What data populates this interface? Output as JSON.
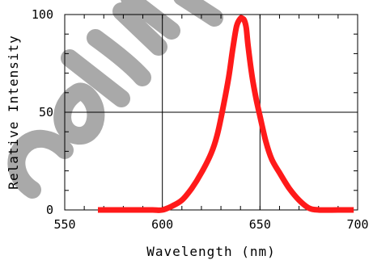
{
  "chart_data": {
    "type": "line",
    "title": "",
    "xlabel": "Wavelength (nm)",
    "ylabel": "Relative Intensity",
    "xlim": [
      550,
      700
    ],
    "ylim": [
      0,
      100
    ],
    "x_ticks": [
      550,
      600,
      650,
      700
    ],
    "y_ticks": [
      0,
      50,
      100
    ],
    "grid": true,
    "series": [
      {
        "color": "#ff1a1a",
        "x": [
          567,
          575,
          585,
          595,
          600,
          605,
          610,
          615,
          620,
          625,
          628,
          631,
          634,
          636,
          638,
          640,
          641,
          642,
          643,
          644,
          646,
          648,
          650,
          653,
          656,
          660,
          665,
          670,
          675,
          680,
          690,
          698
        ],
        "y": [
          0,
          0,
          0,
          0,
          0,
          2,
          5,
          11,
          19,
          29,
          38,
          52,
          68,
          82,
          94,
          98,
          98,
          97,
          93,
          83,
          68,
          57,
          48,
          35,
          26,
          19,
          11,
          5,
          1,
          0,
          0,
          0
        ]
      }
    ]
  },
  "watermark": {
    "text": "Confidential",
    "color": "#a9a9a9"
  }
}
